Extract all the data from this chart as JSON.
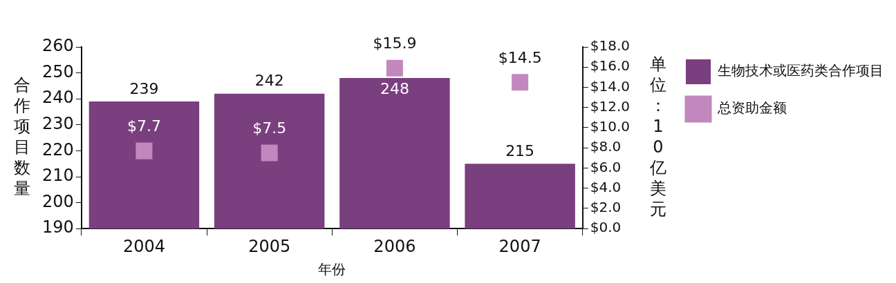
{
  "chart_data": {
    "type": "bar",
    "xlabel": "年份",
    "ylabel": "合作项目数量",
    "y2label": "单位：10亿美元",
    "categories": [
      "2004",
      "2005",
      "2006",
      "2007"
    ],
    "series": [
      {
        "name": "生物技术或医药类合作项目",
        "color": "#7a3f7e",
        "values": [
          239,
          242,
          248,
          215
        ],
        "value_labels": [
          "239",
          "242",
          "248",
          "215"
        ]
      },
      {
        "name": "总资助金额",
        "type": "scatter",
        "axis": "y2",
        "color": "#c188bd",
        "values": [
          7.7,
          7.5,
          15.9,
          14.5
        ],
        "value_labels": [
          "$7.7",
          "$7.5",
          "$15.9",
          "$14.5"
        ]
      }
    ],
    "ylim": [
      190,
      260
    ],
    "yticks": [
      190,
      200,
      210,
      220,
      230,
      240,
      250,
      260
    ],
    "y2lim": [
      0,
      18
    ],
    "y2ticks": [
      {
        "value": 0,
        "label": "$0.0"
      },
      {
        "value": 2,
        "label": "$2.0"
      },
      {
        "value": 4,
        "label": "$4.0"
      },
      {
        "value": 6,
        "label": "$6.0"
      },
      {
        "value": 8,
        "label": "$8.0"
      },
      {
        "value": 10,
        "label": "$10.0"
      },
      {
        "value": 12,
        "label": "$12.0"
      },
      {
        "value": 14,
        "label": "$14.0"
      },
      {
        "value": 16,
        "label": "$16.0"
      },
      {
        "value": 18,
        "label": "$18.0"
      }
    ],
    "grid": false,
    "legend": "top right",
    "marker": "square"
  }
}
